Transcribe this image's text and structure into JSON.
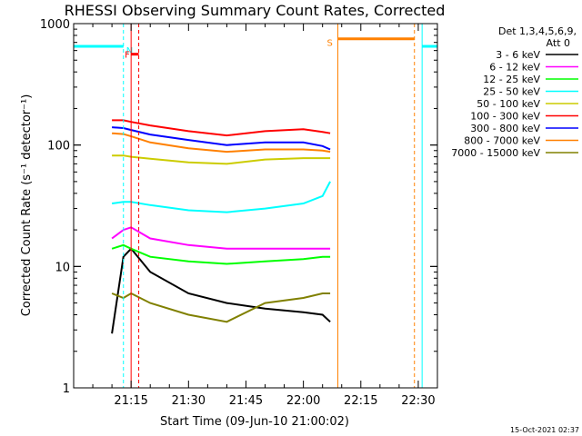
{
  "chart_data": {
    "type": "line",
    "title": "RHESSI Observing Summary Count Rates, Corrected",
    "xlabel": "Start Time (09-Jun-10 21:00:02)",
    "ylabel": "Corrected Count Rate (s⁻¹ detector⁻¹)",
    "yscale": "log",
    "ylim": [
      1,
      1000
    ],
    "xlim": [
      "21:00",
      "22:35"
    ],
    "x_ticks": [
      "21:15",
      "21:30",
      "21:45",
      "22:00",
      "22:15",
      "22:30"
    ],
    "y_ticks": [
      "1",
      "10",
      "100",
      "1000"
    ],
    "legend_title": [
      "Det 1,3,4,5,6,9,",
      "Att 0"
    ],
    "legend_position": "right",
    "series": [
      {
        "name": "3 - 6 keV",
        "color": "#000000",
        "x": [
          "21:10",
          "21:13",
          "21:15",
          "21:20",
          "21:30",
          "21:40",
          "21:50",
          "22:00",
          "22:05",
          "22:07"
        ],
        "y": [
          2.8,
          12,
          14,
          9,
          6,
          5,
          4.5,
          4.2,
          4,
          3.5
        ]
      },
      {
        "name": "6 - 12 keV",
        "color": "#ff00ff",
        "x": [
          "21:10",
          "21:13",
          "21:15",
          "21:20",
          "21:30",
          "21:40",
          "21:50",
          "22:00",
          "22:05",
          "22:07"
        ],
        "y": [
          17,
          20,
          21,
          17,
          15,
          14,
          14,
          14,
          14,
          14
        ]
      },
      {
        "name": "12 - 25 keV",
        "color": "#00ff00",
        "x": [
          "21:10",
          "21:13",
          "21:15",
          "21:20",
          "21:30",
          "21:40",
          "21:50",
          "22:00",
          "22:05",
          "22:07"
        ],
        "y": [
          14,
          15,
          14,
          12,
          11,
          10.5,
          11,
          11.5,
          12,
          12
        ]
      },
      {
        "name": "25 - 50 keV",
        "color": "#00ffff",
        "x": [
          "21:10",
          "21:13",
          "21:15",
          "21:20",
          "21:30",
          "21:40",
          "21:50",
          "22:00",
          "22:05",
          "22:07"
        ],
        "y": [
          33,
          34,
          34,
          32,
          29,
          28,
          30,
          33,
          38,
          50
        ]
      },
      {
        "name": "50 - 100 keV",
        "color": "#cccc00",
        "x": [
          "21:10",
          "21:13",
          "21:15",
          "21:20",
          "21:30",
          "21:40",
          "21:50",
          "22:00",
          "22:05",
          "22:07"
        ],
        "y": [
          82,
          82,
          80,
          77,
          72,
          70,
          76,
          78,
          78,
          78
        ]
      },
      {
        "name": "100 - 300 keV",
        "color": "#ff0000",
        "x": [
          "21:10",
          "21:13",
          "21:15",
          "21:20",
          "21:30",
          "21:40",
          "21:50",
          "22:00",
          "22:05",
          "22:07"
        ],
        "y": [
          160,
          160,
          155,
          145,
          130,
          120,
          130,
          135,
          128,
          125
        ]
      },
      {
        "name": "300 - 800 keV",
        "color": "#0000ff",
        "x": [
          "21:10",
          "21:13",
          "21:15",
          "21:20",
          "21:30",
          "21:40",
          "21:50",
          "22:00",
          "22:05",
          "22:07"
        ],
        "y": [
          140,
          138,
          133,
          122,
          110,
          100,
          105,
          105,
          98,
          92
        ]
      },
      {
        "name": "800 - 7000 keV",
        "color": "#ff8000",
        "x": [
          "21:10",
          "21:13",
          "21:15",
          "21:20",
          "21:30",
          "21:40",
          "21:50",
          "22:00",
          "22:05",
          "22:07"
        ],
        "y": [
          125,
          123,
          118,
          105,
          94,
          88,
          92,
          92,
          90,
          88
        ]
      },
      {
        "name": "7000 - 15000 keV",
        "color": "#808000",
        "x": [
          "21:10",
          "21:13",
          "21:15",
          "21:20",
          "21:30",
          "21:40",
          "21:50",
          "22:00",
          "22:05",
          "22:07"
        ],
        "y": [
          6,
          5.5,
          6,
          5,
          4,
          3.5,
          5,
          5.5,
          6,
          6
        ]
      }
    ],
    "flags": [
      {
        "label": "N",
        "color": "#00ffff",
        "x_start": "21:00",
        "x_end": "21:13",
        "level": 650
      },
      {
        "label": "F",
        "color": "#ff0000",
        "x_start": "21:15",
        "x_end": "21:17",
        "level": 560
      },
      {
        "label": "S",
        "color": "#ff8000",
        "x_start": "22:09",
        "x_end": "22:29",
        "level": 750
      },
      {
        "label": "",
        "color": "#00ffff",
        "x_start": "22:31",
        "x_end": "22:35",
        "level": 650
      }
    ],
    "timestamp": "15-Oct-2021 02:37"
  }
}
